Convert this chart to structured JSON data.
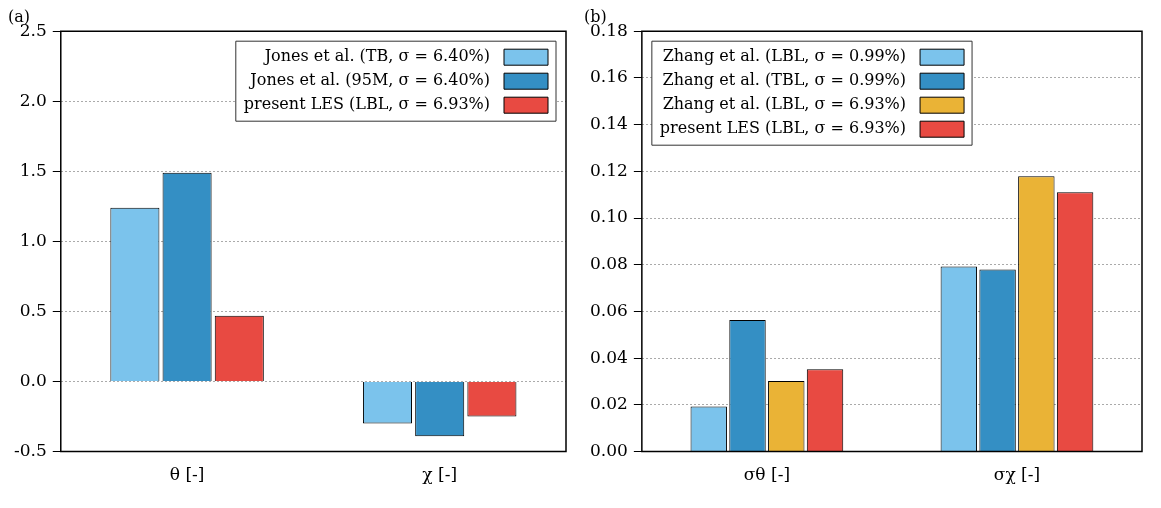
{
  "chart_data": [
    {
      "type": "bar",
      "title": "(a)",
      "categories": [
        "θ [-]",
        "χ [-]"
      ],
      "series": [
        {
          "name": "Jones et al. (TB, σ = 6.40%)",
          "color": "#7bc3ec",
          "values": [
            1.24,
            -0.3
          ]
        },
        {
          "name": "Jones et al. (95M, σ = 6.40%)",
          "color": "#348fc4",
          "values": [
            1.49,
            -0.39
          ]
        },
        {
          "name": "present LES (LBL, σ = 6.93%)",
          "color": "#e84a42",
          "values": [
            0.47,
            -0.25
          ]
        }
      ],
      "ylim": [
        -0.5,
        2.5
      ],
      "yticks": [
        {
          "value": -0.5,
          "label": "-0.5"
        },
        {
          "value": 0,
          "label": "0.0"
        },
        0.5,
        {
          "value": 1,
          "label": "1.0"
        },
        1.5,
        {
          "value": 2,
          "label": "2.0"
        },
        2.5
      ],
      "grid": "y",
      "legend": "top right"
    },
    {
      "type": "bar",
      "title": "(b)",
      "categories": [
        "σθ [-]",
        "σχ [-]"
      ],
      "series": [
        {
          "name": "Zhang et al. (LBL, σ = 0.99%)",
          "color": "#7bc3ec",
          "values": [
            0.0193,
            0.0793
          ]
        },
        {
          "name": "Zhang et al. (TBL, σ = 0.99%)",
          "color": "#348fc4",
          "values": [
            0.0564,
            0.078
          ]
        },
        {
          "name": "Zhang et al. (LBL, σ = 6.93%)",
          "color": "#eab336",
          "values": [
            0.0302,
            0.1179
          ]
        },
        {
          "name": "present LES (LBL, σ = 6.93%)",
          "color": "#e84a42",
          "values": [
            0.0353,
            0.111
          ]
        }
      ],
      "ylim": [
        0,
        0.18
      ],
      "yticks": [
        {
          "value": 0,
          "label": "0.00"
        },
        0.02,
        0.04,
        0.06,
        0.08,
        {
          "value": 0.1,
          "label": "0.10"
        },
        0.12,
        0.14,
        0.16,
        0.18
      ],
      "grid": "y",
      "legend": "top left"
    }
  ]
}
